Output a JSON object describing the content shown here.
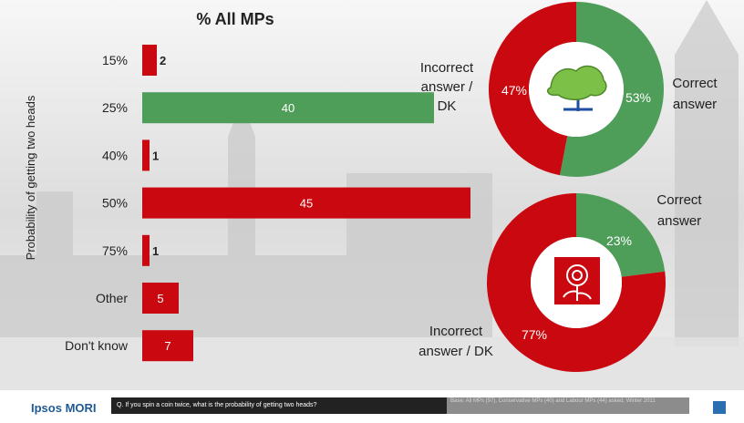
{
  "colors": {
    "red": "#c9090f",
    "green": "#4e9e5a",
    "text": "#222222",
    "background": "#e7e7e7"
  },
  "chart_data": [
    {
      "type": "bar",
      "orientation": "horizontal",
      "title": "% All MPs",
      "ylabel": "Probability of getting two heads",
      "categories": [
        "15%",
        "25%",
        "40%",
        "50%",
        "75%",
        "Other",
        "Don't know"
      ],
      "values": [
        2,
        40,
        1,
        45,
        1,
        5,
        7
      ],
      "bar_colors": [
        "red",
        "green",
        "red",
        "red",
        "red",
        "red",
        "red"
      ],
      "xlim": [
        0,
        50
      ]
    },
    {
      "type": "pie",
      "style": "donut",
      "center_icon": "conservative-tree-icon",
      "slices": [
        {
          "label": "Correct answer",
          "value": 53,
          "display": "53%",
          "color": "green"
        },
        {
          "label": "Incorrect answer / DK",
          "value": 47,
          "display": "47%",
          "color": "red"
        }
      ],
      "label_texts": {
        "correct": [
          "Correct",
          "answer"
        ],
        "incorrect": [
          "Incorrect",
          "answer /",
          "DK"
        ]
      }
    },
    {
      "type": "pie",
      "style": "donut",
      "center_icon": "labour-rose-icon",
      "slices": [
        {
          "label": "Correct answer",
          "value": 23,
          "display": "23%",
          "color": "green"
        },
        {
          "label": "Incorrect answer / DK",
          "value": 77,
          "display": "77%",
          "color": "red"
        }
      ],
      "label_texts": {
        "correct": [
          "Correct",
          "answer"
        ],
        "incorrect": [
          "Incorrect",
          "answer / DK"
        ]
      }
    }
  ],
  "footer": {
    "brand": "Ipsos MORI",
    "question": "Q. If you spin a coin twice, what is the probability of getting two heads?",
    "base_note": "Base: All MPs (97), Conservative MPs (40) and Labour MPs (44) asked, Winter 2011"
  }
}
